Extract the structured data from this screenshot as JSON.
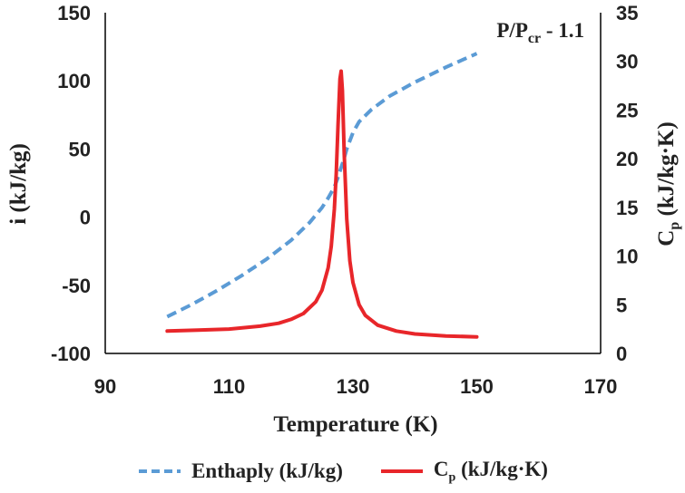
{
  "chart_data": {
    "type": "line",
    "annotation": "P/P",
    "annotation_sub": "cr",
    "annotation_tail": " - 1.1",
    "xlabel": "Temperature (K)",
    "ylabel_left": "i (kJ/kg)",
    "ylabel_right_main": "C",
    "ylabel_right_sub": "p",
    "ylabel_right_tail": " (kJ/kg·K)",
    "xlim": [
      90,
      170
    ],
    "ylim_left": [
      -100,
      150
    ],
    "ylim_right": [
      0,
      35
    ],
    "x_ticks": [
      "90",
      "110",
      "130",
      "150",
      "170"
    ],
    "y_left_ticks": [
      "-100",
      "-50",
      "0",
      "50",
      "100",
      "150"
    ],
    "y_right_ticks": [
      "0",
      "5",
      "10",
      "15",
      "20",
      "25",
      "30",
      "35"
    ],
    "series": [
      {
        "name": "Enthaply (kJ/kg)",
        "axis": "left",
        "style": "dashed",
        "color": "#5b9bd5",
        "x": [
          100,
          104,
          108,
          112,
          116,
          120,
          123,
          125,
          126,
          127,
          127.5,
          128,
          128.5,
          129,
          130,
          131,
          133,
          136,
          140,
          145,
          150
        ],
        "y": [
          -73,
          -64,
          -54,
          -43,
          -31,
          -17,
          -4,
          7,
          14,
          22,
          28,
          35,
          42,
          50,
          62,
          70,
          79,
          89,
          99,
          110,
          120
        ]
      },
      {
        "name_main": "C",
        "name_sub": "p",
        "name_tail": " (kJ/kg·K)",
        "axis": "right",
        "style": "solid",
        "color": "#e8262a",
        "x": [
          100,
          105,
          110,
          115,
          118,
          120,
          122,
          124,
          125,
          126,
          126.5,
          127,
          127.3,
          127.6,
          127.9,
          128.1,
          128.3,
          128.6,
          129,
          129.5,
          130,
          131,
          132,
          134,
          137,
          140,
          145,
          150
        ],
        "y": [
          2.3,
          2.4,
          2.5,
          2.8,
          3.1,
          3.5,
          4.1,
          5.3,
          6.5,
          8.8,
          11.0,
          14.8,
          18.5,
          23.5,
          28.2,
          29.0,
          27.0,
          20.5,
          13.8,
          9.5,
          7.3,
          5.0,
          3.9,
          2.9,
          2.3,
          2.0,
          1.8,
          1.7
        ]
      }
    ]
  }
}
